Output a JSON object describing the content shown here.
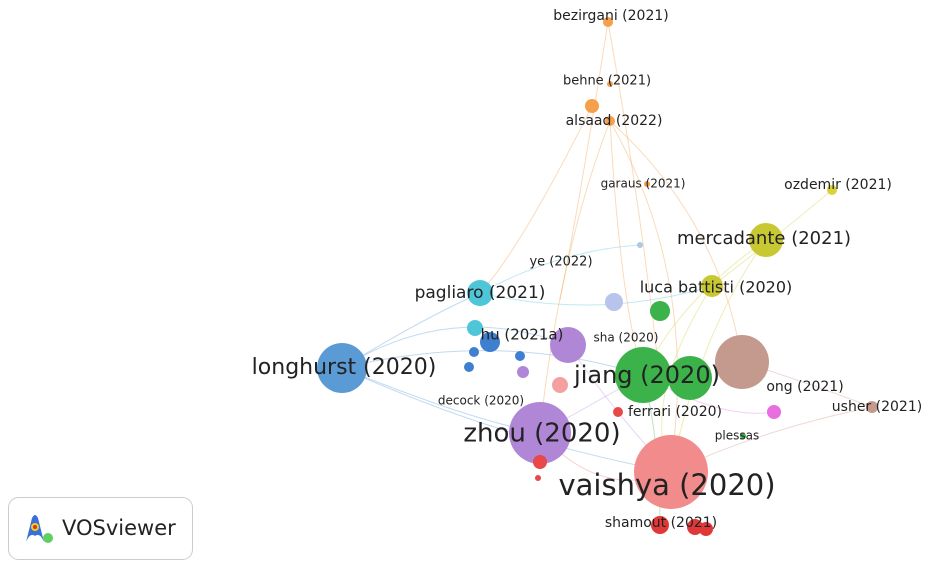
{
  "nodes": [
    {
      "label": "bezirgani (2021)"
    },
    {
      "label": "behne (2021)"
    },
    {
      "label": "alsaad (2022)"
    },
    {
      "label": "garaus (2021)"
    },
    {
      "label": "ozdemir (2021)"
    },
    {
      "label": "mercadante (2021)"
    },
    {
      "label": "ye (2022)"
    },
    {
      "label": "luca battisti (2020)"
    },
    {
      "label": "pagliaro (2021)"
    },
    {
      "label": "hu (2021a)"
    },
    {
      "label": "sha (2020)"
    },
    {
      "label": "longhurst (2020)"
    },
    {
      "label": "jiang (2020)"
    },
    {
      "label": "ong (2021)"
    },
    {
      "label": "decock (2020)"
    },
    {
      "label": "usher (2021)"
    },
    {
      "label": "ferrari (2020)"
    },
    {
      "label": "plessas"
    },
    {
      "label": "zhou (2020)"
    },
    {
      "label": "vaishya (2020)"
    },
    {
      "label": "shamout (2021)"
    }
  ],
  "logo": {
    "text": "VOSviewer"
  }
}
